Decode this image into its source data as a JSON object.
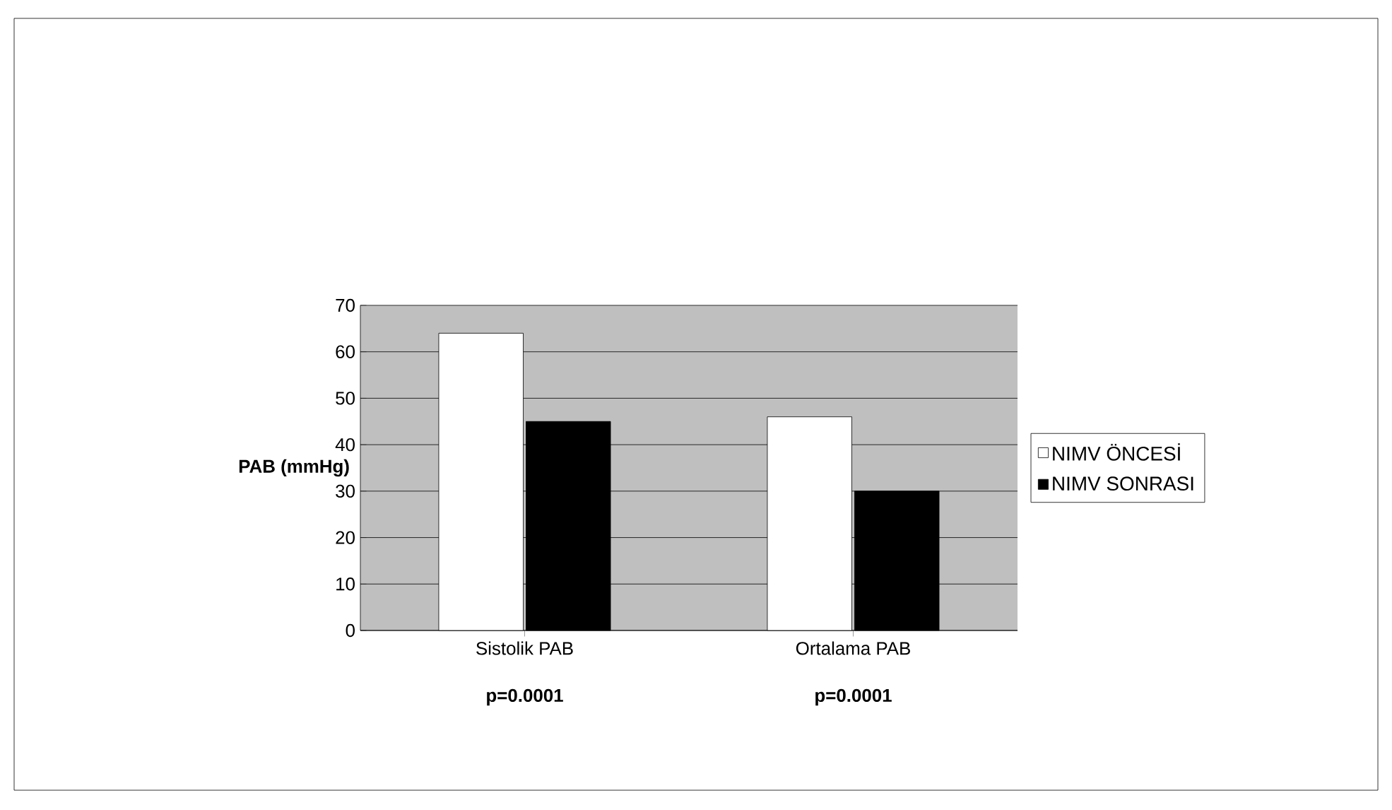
{
  "chart_data": {
    "type": "bar",
    "ylabel": "PAB (mmHg)",
    "categories": [
      "Sistolik PAB",
      "Ortalama PAB"
    ],
    "series": [
      {
        "name": "NIMV ÖNCESİ",
        "color": "#ffffff",
        "values": [
          64,
          46
        ]
      },
      {
        "name": "NIMV SONRASI",
        "color": "#000000",
        "values": [
          45,
          30
        ]
      }
    ],
    "ylim": [
      0,
      70
    ],
    "yticks": [
      0,
      10,
      20,
      30,
      40,
      50,
      60,
      70
    ],
    "grid": "y",
    "legend": "right",
    "annotations": [
      "p=0.0001",
      "p=0.0001"
    ]
  }
}
